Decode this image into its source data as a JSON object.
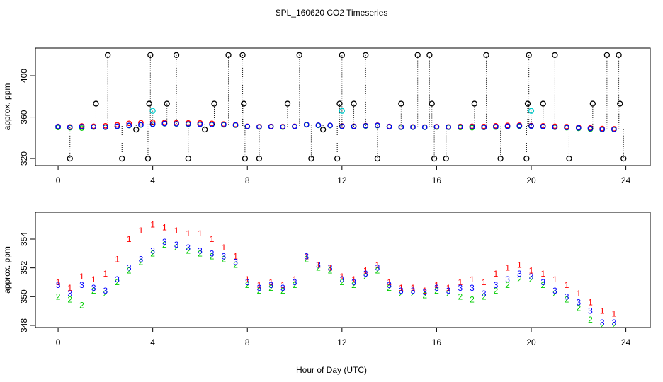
{
  "chart_data": [
    {
      "type": "scatter",
      "title": "SPL_160620  CO2 Timeseries",
      "ylabel": "approx. ppm",
      "xlim": [
        -0.96,
        25.03
      ],
      "ylim": [
        313.2,
        426.7
      ],
      "xticks": [
        0,
        4,
        8,
        12,
        16,
        20,
        24
      ],
      "yticks": [
        320,
        360,
        400
      ],
      "series": [
        {
          "color": "#ff0000",
          "marker": "circle",
          "x": [
            0,
            0.5,
            1,
            1.5,
            2,
            2.5,
            3,
            3.5,
            4,
            4.5,
            5,
            5.5,
            6,
            6.5,
            7,
            7.5,
            8,
            8.5,
            9,
            9.5,
            10,
            10.5,
            11,
            11.5,
            12,
            12.5,
            13,
            13.5,
            14,
            14.5,
            15,
            15.5,
            16,
            16.5,
            17,
            17.5,
            18,
            18.5,
            19,
            19.5,
            20,
            20.5,
            21,
            21.5,
            22,
            22.5,
            23,
            23.5
          ],
          "values": [
            351.0,
            350.6,
            351.4,
            351.2,
            351.6,
            352.6,
            354.0,
            354.6,
            355.0,
            354.8,
            354.6,
            354.4,
            354.4,
            354.0,
            353.4,
            352.8,
            351.2,
            350.8,
            351.0,
            350.8,
            351.2,
            352.8,
            352.2,
            352.0,
            351.4,
            351.2,
            351.8,
            352.2,
            351.0,
            350.6,
            350.6,
            350.4,
            350.8,
            350.6,
            351.0,
            351.2,
            351.0,
            351.6,
            352.0,
            352.2,
            351.8,
            351.6,
            351.2,
            350.8,
            350.2,
            349.6,
            349.0,
            348.8
          ]
        },
        {
          "color": "#00cc00",
          "marker": "circle",
          "x": [
            0,
            0.5,
            1,
            1.5,
            2,
            2.5,
            3,
            3.5,
            4,
            4.5,
            5,
            5.5,
            6,
            6.5,
            7,
            7.5,
            8,
            8.5,
            9,
            9.5,
            10,
            10.5,
            11,
            11.5,
            12,
            12.5,
            13,
            13.5,
            14,
            14.5,
            15,
            15.5,
            16,
            16.5,
            17,
            17.5,
            18,
            18.5,
            19,
            19.5,
            20,
            20.5,
            21,
            21.5,
            22,
            22.5,
            23,
            23.5
          ],
          "values": [
            350.0,
            349.8,
            349.4,
            350.4,
            350.2,
            351.0,
            351.8,
            352.4,
            353.0,
            353.6,
            353.4,
            353.2,
            353.0,
            352.8,
            352.6,
            352.2,
            350.8,
            350.4,
            350.6,
            350.4,
            350.8,
            352.6,
            352.0,
            351.8,
            351.0,
            350.8,
            351.4,
            351.8,
            350.6,
            350.2,
            350.2,
            350.1,
            350.4,
            350.2,
            350.0,
            349.8,
            350.0,
            350.4,
            350.8,
            351.2,
            351.2,
            350.8,
            350.2,
            349.8,
            349.2,
            348.4,
            348.0,
            348.0
          ]
        },
        {
          "color": "#0000ff",
          "marker": "circle",
          "x": [
            0,
            0.5,
            1,
            1.5,
            2,
            2.5,
            3,
            3.5,
            4,
            4.5,
            5,
            5.5,
            6,
            6.5,
            7,
            7.5,
            8,
            8.5,
            9,
            9.5,
            10,
            10.5,
            11,
            11.5,
            12,
            12.5,
            13,
            13.5,
            14,
            14.5,
            15,
            15.5,
            16,
            16.5,
            17,
            17.5,
            18,
            18.5,
            19,
            19.5,
            20,
            20.5,
            21,
            21.5,
            22,
            22.5,
            23,
            23.5
          ],
          "values": [
            350.8,
            350.2,
            350.8,
            350.6,
            350.4,
            351.2,
            352.0,
            352.6,
            353.2,
            353.8,
            353.6,
            353.4,
            353.2,
            353.0,
            352.8,
            352.4,
            351.0,
            350.6,
            350.8,
            350.6,
            351.0,
            352.8,
            352.2,
            352.0,
            351.2,
            351.0,
            351.6,
            352.0,
            350.8,
            350.4,
            350.4,
            350.3,
            350.6,
            350.4,
            350.6,
            350.6,
            350.2,
            350.8,
            351.2,
            351.6,
            351.4,
            351.0,
            350.4,
            350.0,
            349.6,
            349.0,
            348.2,
            348.2
          ]
        },
        {
          "color": "#000000",
          "marker": "circle",
          "stems": true,
          "x": [
            0.5,
            1.6,
            2.1,
            2.7,
            3.3,
            3.8,
            3.85,
            3.9,
            4.6,
            5.0,
            5.5,
            6.2,
            6.6,
            7.2,
            7.8,
            7.85,
            7.9,
            8.5,
            9.7,
            10.2,
            10.7,
            11.2,
            11.8,
            11.9,
            12.0,
            12.5,
            13.0,
            13.5,
            14.5,
            15.2,
            15.7,
            15.8,
            15.9,
            16.4,
            17.6,
            18.1,
            18.7,
            19.8,
            19.85,
            19.9,
            20.5,
            21.0,
            21.6,
            22.6,
            23.2,
            23.7,
            23.75,
            23.9
          ],
          "values": [
            320,
            373,
            420,
            320,
            348,
            320,
            373,
            420,
            373,
            420,
            320,
            348,
            373,
            420,
            420,
            373,
            320,
            320,
            373,
            420,
            320,
            348,
            320,
            373,
            420,
            373,
            420,
            320,
            373,
            420,
            420,
            373,
            320,
            320,
            373,
            420,
            320,
            320,
            373,
            420,
            373,
            420,
            320,
            373,
            420,
            420,
            373,
            320
          ]
        },
        {
          "color": "#00cccc",
          "marker": "circle",
          "stems": true,
          "x": [
            4.0,
            12.0,
            20.0
          ],
          "values": [
            366,
            366,
            366
          ]
        }
      ]
    },
    {
      "type": "scatter",
      "ylabel": "approx. ppm",
      "xlabel": "Hour of Day (UTC)",
      "xlim": [
        -0.96,
        25.03
      ],
      "ylim": [
        347.85,
        355.87
      ],
      "xticks": [
        0,
        4,
        8,
        12,
        16,
        20,
        24
      ],
      "yticks": [
        348,
        350,
        352,
        354
      ],
      "series": [
        {
          "color": "#ff0000",
          "marker": "1",
          "x": [
            0,
            0.5,
            1,
            1.5,
            2,
            2.5,
            3,
            3.5,
            4,
            4.5,
            5,
            5.5,
            6,
            6.5,
            7,
            7.5,
            8,
            8.5,
            9,
            9.5,
            10,
            10.5,
            11,
            11.5,
            12,
            12.5,
            13,
            13.5,
            14,
            14.5,
            15,
            15.5,
            16,
            16.5,
            17,
            17.5,
            18,
            18.5,
            19,
            19.5,
            20,
            20.5,
            21,
            21.5,
            22,
            22.5,
            23,
            23.5
          ],
          "values": [
            351.0,
            350.6,
            351.4,
            351.2,
            351.6,
            352.6,
            354.0,
            354.6,
            355.0,
            354.8,
            354.6,
            354.4,
            354.4,
            354.0,
            353.4,
            352.8,
            351.2,
            350.8,
            351.0,
            350.8,
            351.2,
            352.8,
            352.2,
            352.0,
            351.4,
            351.2,
            351.8,
            352.2,
            351.0,
            350.6,
            350.6,
            350.4,
            350.8,
            350.6,
            351.0,
            351.2,
            351.0,
            351.6,
            352.0,
            352.2,
            351.8,
            351.6,
            351.2,
            350.8,
            350.2,
            349.6,
            349.0,
            348.8
          ]
        },
        {
          "color": "#00cc00",
          "marker": "2",
          "x": [
            0,
            0.5,
            1,
            1.5,
            2,
            2.5,
            3,
            3.5,
            4,
            4.5,
            5,
            5.5,
            6,
            6.5,
            7,
            7.5,
            8,
            8.5,
            9,
            9.5,
            10,
            10.5,
            11,
            11.5,
            12,
            12.5,
            13,
            13.5,
            14,
            14.5,
            15,
            15.5,
            16,
            16.5,
            17,
            17.5,
            18,
            18.5,
            19,
            19.5,
            20,
            20.5,
            21,
            21.5,
            22,
            22.5,
            23,
            23.5
          ],
          "values": [
            350.0,
            349.8,
            349.4,
            350.4,
            350.2,
            351.0,
            351.8,
            352.4,
            353.0,
            353.6,
            353.4,
            353.2,
            353.0,
            352.8,
            352.6,
            352.2,
            350.8,
            350.4,
            350.6,
            350.4,
            350.8,
            352.6,
            352.0,
            351.8,
            351.0,
            350.8,
            351.4,
            351.8,
            350.6,
            350.2,
            350.2,
            350.1,
            350.4,
            350.2,
            350.0,
            349.8,
            350.0,
            350.4,
            350.8,
            351.2,
            351.2,
            350.8,
            350.2,
            349.8,
            349.2,
            348.4,
            348.0,
            348.0
          ]
        },
        {
          "color": "#0000ff",
          "marker": "3",
          "x": [
            0,
            0.5,
            1,
            1.5,
            2,
            2.5,
            3,
            3.5,
            4,
            4.5,
            5,
            5.5,
            6,
            6.5,
            7,
            7.5,
            8,
            8.5,
            9,
            9.5,
            10,
            10.5,
            11,
            11.5,
            12,
            12.5,
            13,
            13.5,
            14,
            14.5,
            15,
            15.5,
            16,
            16.5,
            17,
            17.5,
            18,
            18.5,
            19,
            19.5,
            20,
            20.5,
            21,
            21.5,
            22,
            22.5,
            23,
            23.5
          ],
          "values": [
            350.8,
            350.2,
            350.8,
            350.6,
            350.4,
            351.2,
            352.0,
            352.6,
            353.2,
            353.8,
            353.6,
            353.4,
            353.2,
            353.0,
            352.8,
            352.4,
            351.0,
            350.6,
            350.8,
            350.6,
            351.0,
            352.8,
            352.2,
            352.0,
            351.2,
            351.0,
            351.6,
            352.0,
            350.8,
            350.4,
            350.4,
            350.3,
            350.6,
            350.4,
            350.6,
            350.6,
            350.2,
            350.8,
            351.2,
            351.6,
            351.4,
            351.0,
            350.4,
            350.0,
            349.6,
            349.0,
            348.2,
            348.2
          ]
        }
      ]
    }
  ]
}
